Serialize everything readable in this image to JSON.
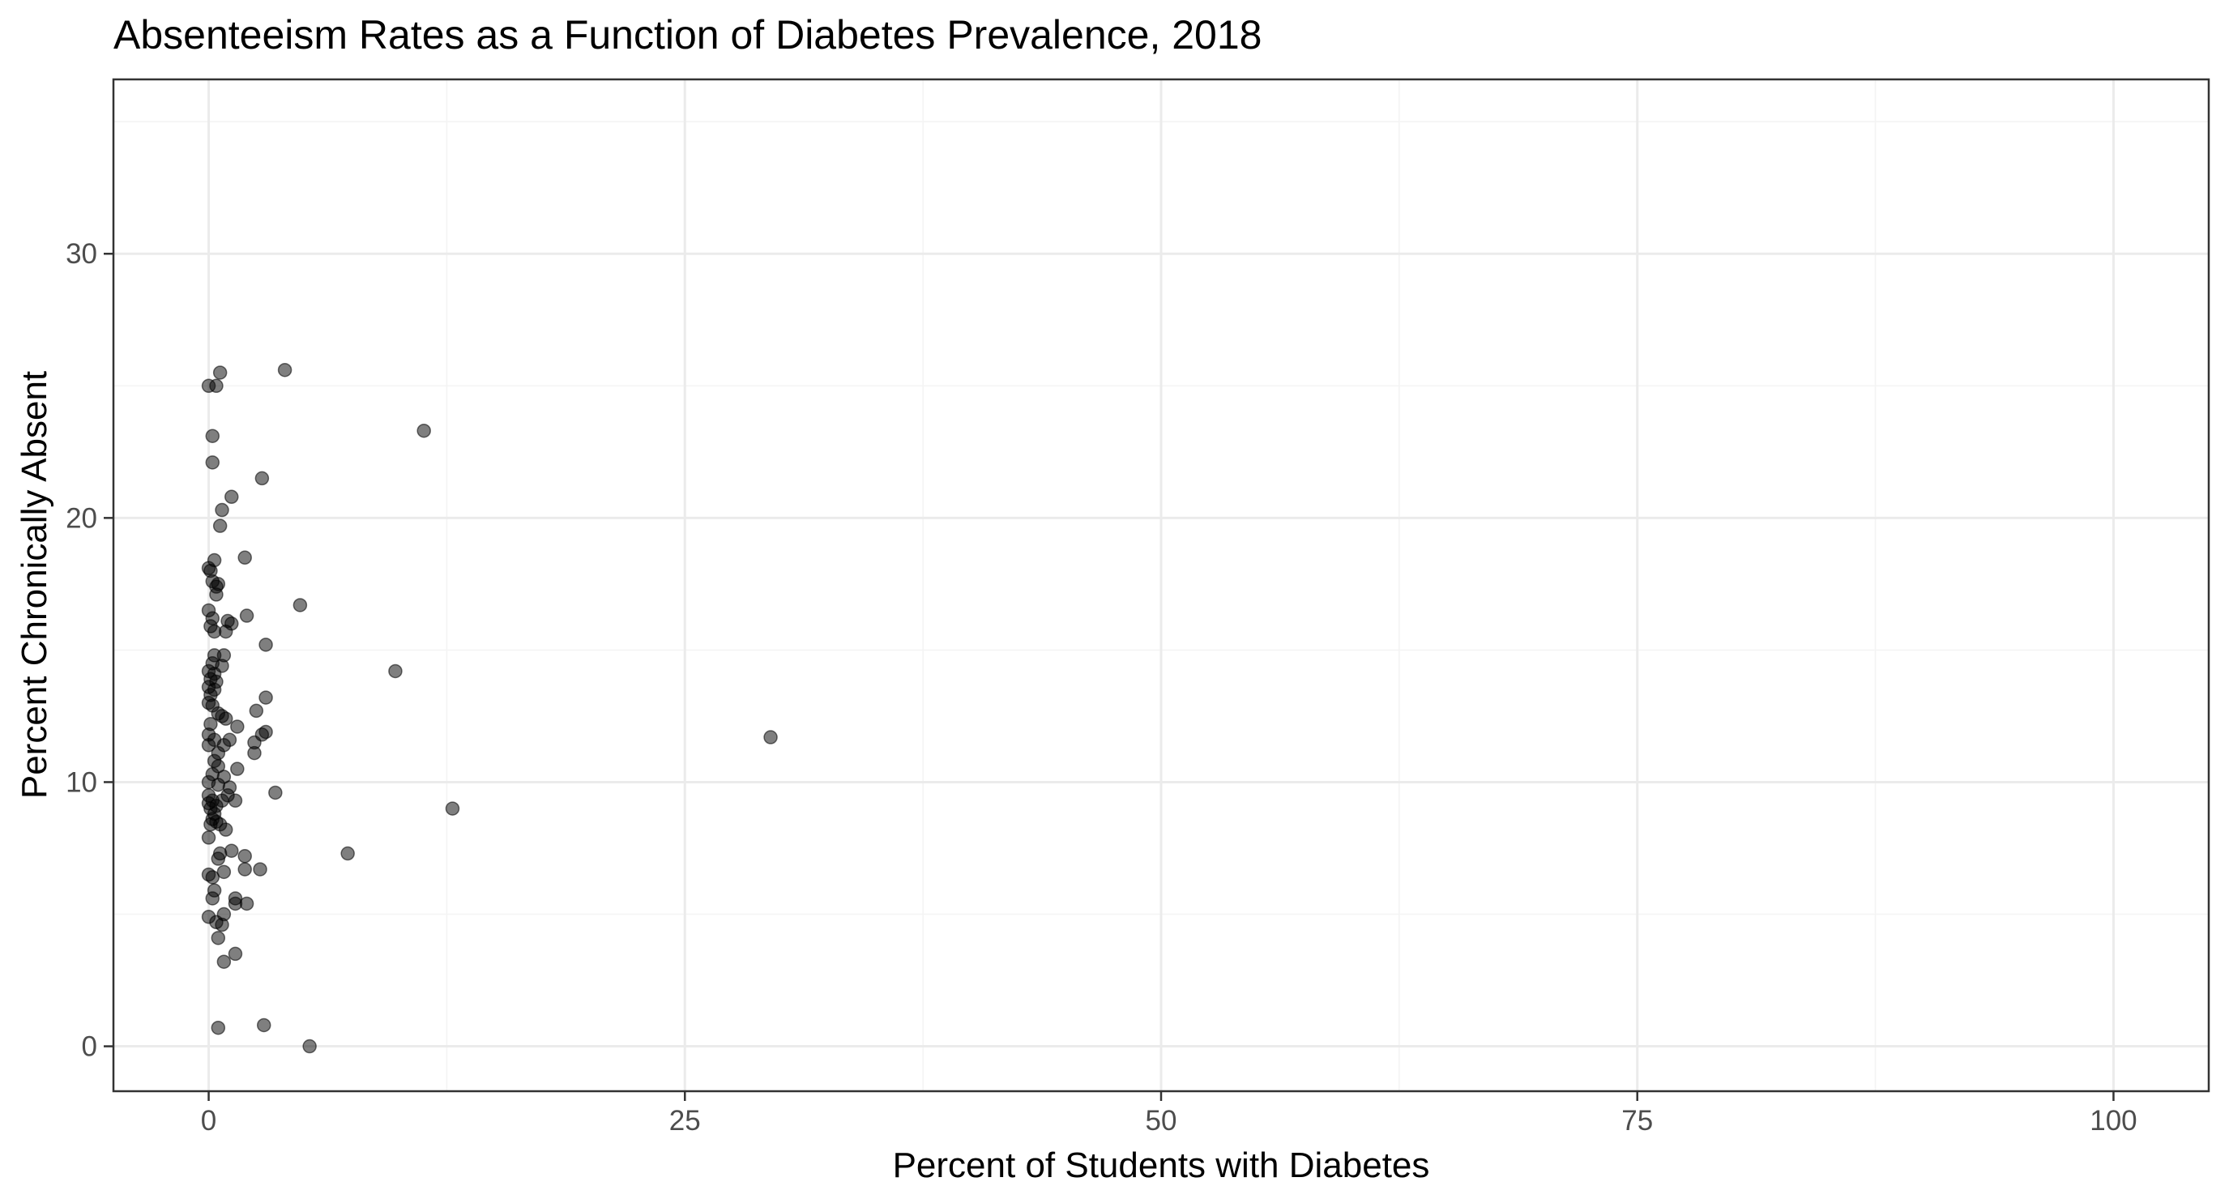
{
  "chart_data": {
    "type": "scatter",
    "title": "Absenteeism Rates as a Function of Diabetes Prevalence, 2018",
    "xlabel": "Percent of Students with Diabetes",
    "ylabel": "Percent Chronically Absent",
    "xlim": [
      -5,
      105
    ],
    "ylim": [
      -1.7,
      36.6
    ],
    "x_ticks": [
      0,
      25,
      50,
      75,
      100
    ],
    "x_tick_labels": [
      "0",
      "25",
      "50",
      "75",
      "100"
    ],
    "y_ticks": [
      0,
      10,
      20,
      30
    ],
    "y_tick_labels": [
      "0",
      "10",
      "20",
      "30"
    ],
    "grid": true,
    "legend": "none",
    "point_color": "#000000",
    "points": [
      {
        "x": 0.0,
        "y": 25.0
      },
      {
        "x": 0.4,
        "y": 25.0
      },
      {
        "x": 0.6,
        "y": 25.5
      },
      {
        "x": 4.0,
        "y": 25.6
      },
      {
        "x": 11.3,
        "y": 23.3
      },
      {
        "x": 0.2,
        "y": 23.1
      },
      {
        "x": 0.2,
        "y": 22.1
      },
      {
        "x": 2.8,
        "y": 21.5
      },
      {
        "x": 1.2,
        "y": 20.8
      },
      {
        "x": 0.7,
        "y": 20.3
      },
      {
        "x": 0.6,
        "y": 19.7
      },
      {
        "x": 1.9,
        "y": 18.5
      },
      {
        "x": 0.3,
        "y": 18.4
      },
      {
        "x": 0.0,
        "y": 18.1
      },
      {
        "x": 0.1,
        "y": 18.0
      },
      {
        "x": 0.2,
        "y": 17.6
      },
      {
        "x": 0.4,
        "y": 17.4
      },
      {
        "x": 0.5,
        "y": 17.5
      },
      {
        "x": 0.4,
        "y": 17.1
      },
      {
        "x": 4.8,
        "y": 16.7
      },
      {
        "x": 0.0,
        "y": 16.5
      },
      {
        "x": 2.0,
        "y": 16.3
      },
      {
        "x": 0.2,
        "y": 16.2
      },
      {
        "x": 1.0,
        "y": 16.1
      },
      {
        "x": 1.2,
        "y": 16.0
      },
      {
        "x": 0.1,
        "y": 15.9
      },
      {
        "x": 0.3,
        "y": 15.7
      },
      {
        "x": 0.9,
        "y": 15.7
      },
      {
        "x": 3.0,
        "y": 15.2
      },
      {
        "x": 0.3,
        "y": 14.8
      },
      {
        "x": 0.8,
        "y": 14.8
      },
      {
        "x": 0.2,
        "y": 14.5
      },
      {
        "x": 0.7,
        "y": 14.4
      },
      {
        "x": 9.8,
        "y": 14.2
      },
      {
        "x": 0.0,
        "y": 14.2
      },
      {
        "x": 0.3,
        "y": 14.1
      },
      {
        "x": 0.1,
        "y": 13.9
      },
      {
        "x": 0.4,
        "y": 13.8
      },
      {
        "x": 0.0,
        "y": 13.6
      },
      {
        "x": 0.3,
        "y": 13.5
      },
      {
        "x": 0.1,
        "y": 13.3
      },
      {
        "x": 3.0,
        "y": 13.2
      },
      {
        "x": 0.0,
        "y": 13.0
      },
      {
        "x": 0.2,
        "y": 12.9
      },
      {
        "x": 2.5,
        "y": 12.7
      },
      {
        "x": 0.5,
        "y": 12.6
      },
      {
        "x": 0.7,
        "y": 12.5
      },
      {
        "x": 0.9,
        "y": 12.4
      },
      {
        "x": 0.1,
        "y": 12.2
      },
      {
        "x": 1.5,
        "y": 12.1
      },
      {
        "x": 3.0,
        "y": 11.9
      },
      {
        "x": 2.8,
        "y": 11.8
      },
      {
        "x": 0.0,
        "y": 11.8
      },
      {
        "x": 29.5,
        "y": 11.7
      },
      {
        "x": 0.3,
        "y": 11.6
      },
      {
        "x": 1.1,
        "y": 11.6
      },
      {
        "x": 2.4,
        "y": 11.5
      },
      {
        "x": 0.0,
        "y": 11.4
      },
      {
        "x": 0.8,
        "y": 11.4
      },
      {
        "x": 0.5,
        "y": 11.1
      },
      {
        "x": 2.4,
        "y": 11.1
      },
      {
        "x": 0.3,
        "y": 10.8
      },
      {
        "x": 0.5,
        "y": 10.6
      },
      {
        "x": 1.5,
        "y": 10.5
      },
      {
        "x": 0.2,
        "y": 10.3
      },
      {
        "x": 0.8,
        "y": 10.2
      },
      {
        "x": 0.0,
        "y": 10.0
      },
      {
        "x": 0.5,
        "y": 9.9
      },
      {
        "x": 1.1,
        "y": 9.8
      },
      {
        "x": 3.5,
        "y": 9.6
      },
      {
        "x": 0.0,
        "y": 9.5
      },
      {
        "x": 1.0,
        "y": 9.5
      },
      {
        "x": 0.2,
        "y": 9.3
      },
      {
        "x": 0.7,
        "y": 9.3
      },
      {
        "x": 1.4,
        "y": 9.3
      },
      {
        "x": 0.0,
        "y": 9.2
      },
      {
        "x": 0.4,
        "y": 9.1
      },
      {
        "x": 0.1,
        "y": 9.0
      },
      {
        "x": 12.8,
        "y": 9.0
      },
      {
        "x": 0.3,
        "y": 8.8
      },
      {
        "x": 0.2,
        "y": 8.6
      },
      {
        "x": 0.4,
        "y": 8.5
      },
      {
        "x": 0.1,
        "y": 8.4
      },
      {
        "x": 0.6,
        "y": 8.4
      },
      {
        "x": 0.9,
        "y": 8.2
      },
      {
        "x": 0.0,
        "y": 7.9
      },
      {
        "x": 1.2,
        "y": 7.4
      },
      {
        "x": 7.3,
        "y": 7.3
      },
      {
        "x": 0.6,
        "y": 7.3
      },
      {
        "x": 1.9,
        "y": 7.2
      },
      {
        "x": 0.5,
        "y": 7.1
      },
      {
        "x": 2.7,
        "y": 6.7
      },
      {
        "x": 1.9,
        "y": 6.7
      },
      {
        "x": 0.8,
        "y": 6.6
      },
      {
        "x": 0.0,
        "y": 6.5
      },
      {
        "x": 0.2,
        "y": 6.4
      },
      {
        "x": 0.3,
        "y": 5.9
      },
      {
        "x": 1.4,
        "y": 5.6
      },
      {
        "x": 0.2,
        "y": 5.6
      },
      {
        "x": 1.4,
        "y": 5.4
      },
      {
        "x": 2.0,
        "y": 5.4
      },
      {
        "x": 0.8,
        "y": 5.0
      },
      {
        "x": 0.0,
        "y": 4.9
      },
      {
        "x": 0.4,
        "y": 4.7
      },
      {
        "x": 0.7,
        "y": 4.6
      },
      {
        "x": 0.5,
        "y": 4.1
      },
      {
        "x": 1.4,
        "y": 3.5
      },
      {
        "x": 0.8,
        "y": 3.2
      },
      {
        "x": 2.9,
        "y": 0.8
      },
      {
        "x": 0.5,
        "y": 0.7
      },
      {
        "x": 5.3,
        "y": 0.0
      }
    ]
  }
}
